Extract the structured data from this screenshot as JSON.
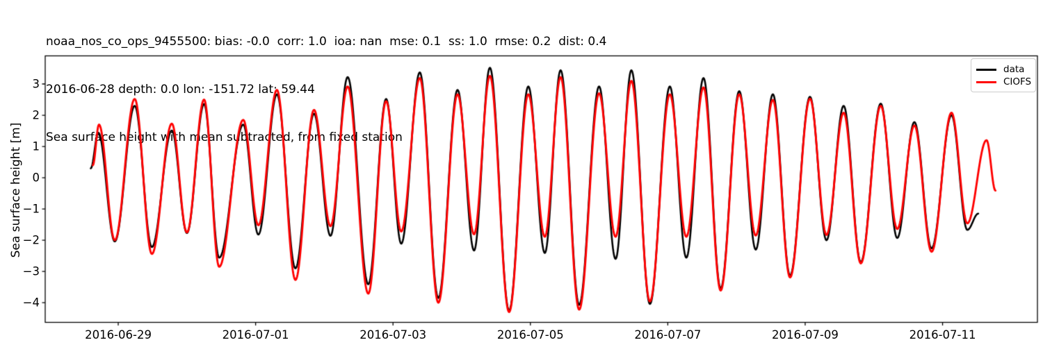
{
  "title": {
    "line1": "noaa_nos_co_ops_9455500: bias: -0.0  corr: 1.0  ioa: nan  mse: 0.1  ss: 1.0  rmse: 0.2  dist: 0.4",
    "line2": "2016-06-28 depth: 0.0 lon: -151.72 lat: 59.44",
    "line3": "Sea surface height with mean subtracted, from fixed station"
  },
  "chart_data": {
    "type": "line",
    "title": "Sea surface height with mean subtracted, from fixed station",
    "station": "noaa_nos_co_ops_9455500",
    "stats": {
      "bias": "-0.0",
      "corr": "1.0",
      "ioa": "nan",
      "mse": "0.1",
      "ss": "1.0",
      "rmse": "0.2",
      "dist": "0.4"
    },
    "xlabel": "",
    "ylabel": "Sea surface height [m]",
    "x_unit": "days since 2016-06-28 00:00",
    "xlim": [
      -0.063,
      14.381
    ],
    "ylim": [
      -4.63,
      3.9
    ],
    "grid": false,
    "x_ticks": [
      {
        "t": 1,
        "label": "2016-06-29"
      },
      {
        "t": 3,
        "label": "2016-07-01"
      },
      {
        "t": 5,
        "label": "2016-07-03"
      },
      {
        "t": 7,
        "label": "2016-07-05"
      },
      {
        "t": 9,
        "label": "2016-07-07"
      },
      {
        "t": 11,
        "label": "2016-07-09"
      },
      {
        "t": 13,
        "label": "2016-07-11"
      }
    ],
    "y_ticks": [
      {
        "v": 3,
        "label": "3"
      },
      {
        "v": 2,
        "label": "2"
      },
      {
        "v": 1,
        "label": "1"
      },
      {
        "v": 0,
        "label": "0"
      },
      {
        "v": -1,
        "label": "−1"
      },
      {
        "v": -2,
        "label": "−2"
      },
      {
        "v": -3,
        "label": "−3"
      },
      {
        "v": -4,
        "label": "−4"
      }
    ],
    "legend": {
      "position": "upper right",
      "entries": [
        {
          "label": "data",
          "color": "#000000"
        },
        {
          "label": "CIOFS",
          "color": "#ff0000"
        }
      ]
    },
    "interpolation": "cosine between successive extrema [t_days, height_m]",
    "series": [
      {
        "name": "data",
        "color": "#000000",
        "line_width": 2.6,
        "extrema": [
          [
            0.6,
            0.3
          ],
          [
            0.71,
            1.44
          ],
          [
            0.95,
            -2.04
          ],
          [
            1.24,
            2.3
          ],
          [
            1.49,
            -2.22
          ],
          [
            1.78,
            1.51
          ],
          [
            2.0,
            -1.77
          ],
          [
            2.25,
            2.36
          ],
          [
            2.47,
            -2.56
          ],
          [
            2.82,
            1.7
          ],
          [
            3.04,
            -1.82
          ],
          [
            3.31,
            2.67
          ],
          [
            3.58,
            -2.9
          ],
          [
            3.85,
            2.05
          ],
          [
            4.09,
            -1.86
          ],
          [
            4.34,
            3.22
          ],
          [
            4.64,
            -3.41
          ],
          [
            4.9,
            2.52
          ],
          [
            5.12,
            -2.11
          ],
          [
            5.39,
            3.37
          ],
          [
            5.66,
            -3.85
          ],
          [
            5.94,
            2.81
          ],
          [
            6.18,
            -2.33
          ],
          [
            6.41,
            3.52
          ],
          [
            6.69,
            -4.25
          ],
          [
            6.97,
            2.92
          ],
          [
            7.21,
            -2.41
          ],
          [
            7.44,
            3.44
          ],
          [
            7.71,
            -4.07
          ],
          [
            8.0,
            2.92
          ],
          [
            8.24,
            -2.6
          ],
          [
            8.47,
            3.44
          ],
          [
            8.74,
            -4.04
          ],
          [
            9.03,
            2.92
          ],
          [
            9.27,
            -2.56
          ],
          [
            9.52,
            3.19
          ],
          [
            9.77,
            -3.54
          ],
          [
            10.04,
            2.77
          ],
          [
            10.28,
            -2.3
          ],
          [
            10.53,
            2.67
          ],
          [
            10.78,
            -3.13
          ],
          [
            11.07,
            2.59
          ],
          [
            11.31,
            -2.0
          ],
          [
            11.56,
            2.3
          ],
          [
            11.81,
            -2.7
          ],
          [
            12.1,
            2.37
          ],
          [
            12.34,
            -1.93
          ],
          [
            12.59,
            1.78
          ],
          [
            12.84,
            -2.26
          ],
          [
            13.13,
            2.0
          ],
          [
            13.36,
            -1.67
          ],
          [
            13.52,
            -1.15
          ]
        ]
      },
      {
        "name": "CIOFS",
        "color": "#ff0000",
        "line_width": 2.9,
        "extrema": [
          [
            0.63,
            0.4
          ],
          [
            0.72,
            1.7
          ],
          [
            0.95,
            -2.0
          ],
          [
            1.24,
            2.52
          ],
          [
            1.49,
            -2.44
          ],
          [
            1.78,
            1.73
          ],
          [
            2.0,
            -1.75
          ],
          [
            2.25,
            2.5
          ],
          [
            2.47,
            -2.85
          ],
          [
            2.82,
            1.85
          ],
          [
            3.04,
            -1.52
          ],
          [
            3.31,
            2.81
          ],
          [
            3.58,
            -3.27
          ],
          [
            3.85,
            2.17
          ],
          [
            4.09,
            -1.55
          ],
          [
            4.34,
            2.92
          ],
          [
            4.64,
            -3.71
          ],
          [
            4.9,
            2.45
          ],
          [
            5.12,
            -1.72
          ],
          [
            5.39,
            3.19
          ],
          [
            5.66,
            -4.0
          ],
          [
            5.94,
            2.67
          ],
          [
            6.18,
            -1.81
          ],
          [
            6.41,
            3.26
          ],
          [
            6.69,
            -4.3
          ],
          [
            6.97,
            2.67
          ],
          [
            7.21,
            -1.89
          ],
          [
            7.44,
            3.22
          ],
          [
            7.71,
            -4.22
          ],
          [
            8.0,
            2.7
          ],
          [
            8.24,
            -1.89
          ],
          [
            8.47,
            3.1
          ],
          [
            8.74,
            -3.96
          ],
          [
            9.03,
            2.67
          ],
          [
            9.27,
            -1.89
          ],
          [
            9.52,
            2.89
          ],
          [
            9.77,
            -3.61
          ],
          [
            10.04,
            2.67
          ],
          [
            10.28,
            -1.85
          ],
          [
            10.53,
            2.49
          ],
          [
            10.78,
            -3.19
          ],
          [
            11.07,
            2.53
          ],
          [
            11.31,
            -1.83
          ],
          [
            11.56,
            2.08
          ],
          [
            11.81,
            -2.74
          ],
          [
            12.1,
            2.3
          ],
          [
            12.34,
            -1.64
          ],
          [
            12.59,
            1.67
          ],
          [
            12.84,
            -2.37
          ],
          [
            13.13,
            2.08
          ],
          [
            13.36,
            -1.46
          ],
          [
            13.64,
            1.2
          ],
          [
            13.77,
            -0.41
          ]
        ]
      }
    ]
  },
  "colors": {
    "background": "#ffffff",
    "spine": "#000000",
    "text": "#000000",
    "legend_border": "#cccccc"
  }
}
